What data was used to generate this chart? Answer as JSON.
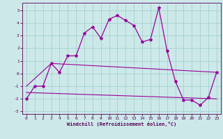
{
  "xlabel": "Windchill (Refroidissement éolien,°C)",
  "bg_color": "#cce8e8",
  "grid_color": "#99cccc",
  "line_color": "#990099",
  "x_values": [
    0,
    1,
    2,
    3,
    4,
    5,
    6,
    7,
    8,
    9,
    10,
    11,
    12,
    13,
    14,
    15,
    16,
    17,
    18,
    19,
    20,
    21,
    22,
    23
  ],
  "line1_y": [
    -2.0,
    -1.0,
    -1.0,
    0.8,
    0.1,
    1.4,
    1.4,
    3.2,
    3.7,
    2.8,
    4.3,
    4.6,
    4.2,
    3.8,
    2.5,
    2.7,
    5.2,
    1.8,
    -0.6,
    -2.1,
    -2.1,
    -2.5,
    -1.9,
    0.1
  ],
  "line2_x": [
    0,
    3,
    23
  ],
  "line2_y": [
    -1.0,
    0.8,
    0.1
  ],
  "line3_x": [
    0,
    23
  ],
  "line3_y": [
    -1.5,
    -2.0
  ],
  "ylim": [
    -3.2,
    5.6
  ],
  "xlim": [
    -0.5,
    23.5
  ],
  "yticks": [
    -3,
    -2,
    -1,
    0,
    1,
    2,
    3,
    4,
    5
  ],
  "xticks": [
    0,
    1,
    2,
    3,
    4,
    5,
    6,
    7,
    8,
    9,
    10,
    11,
    12,
    13,
    14,
    15,
    16,
    17,
    18,
    19,
    20,
    21,
    22,
    23
  ]
}
